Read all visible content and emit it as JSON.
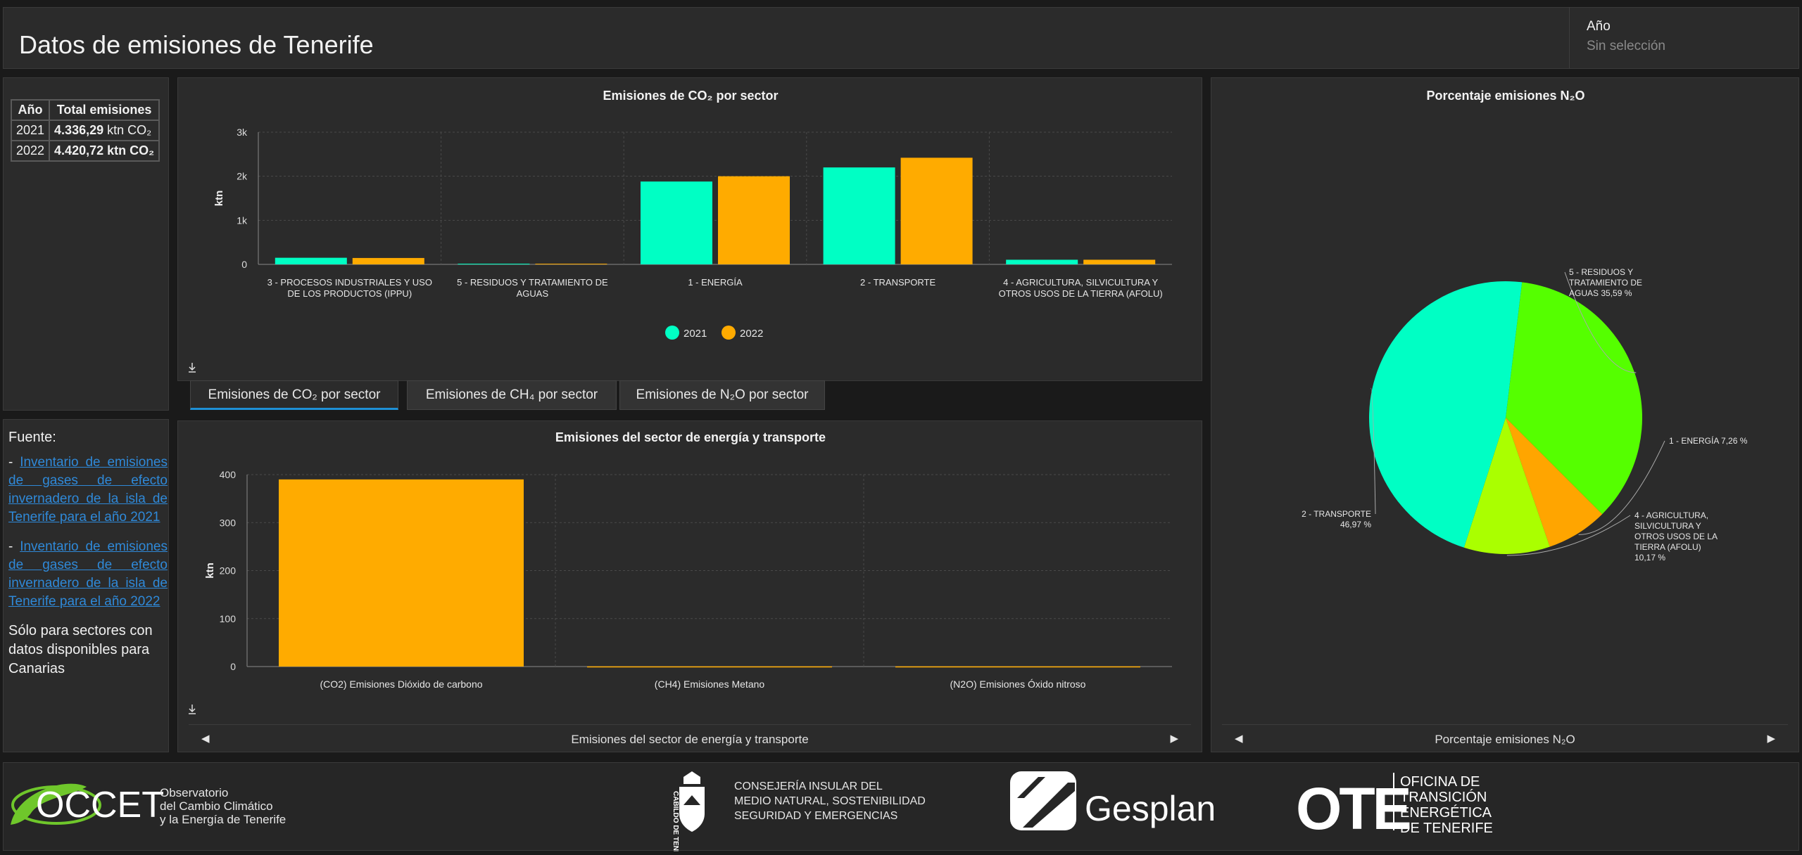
{
  "header": {
    "title": "Datos de emisiones de Tenerife",
    "filter_label": "Año",
    "filter_value": "Sin selección"
  },
  "totals": {
    "col_year": "Año",
    "col_total": "Total emisiones",
    "rows": [
      {
        "year": "2021",
        "value": "4.336,29",
        "unit": "ktn CO₂"
      },
      {
        "year": "2022",
        "value": "4.420,72",
        "unit": "ktn CO₂"
      }
    ]
  },
  "source": {
    "title": "Fuente:",
    "prefix": "- ",
    "link1": "Inventario de emisiones de gases de efecto invernadero de la isla de Tenerife para el año 2021",
    "link2": "Inventario de emisiones de gases de efecto invernadero de la isla de Tenerife para el año 2022",
    "note": "Sólo para sectores con datos disponibles para Canarias"
  },
  "tabs": [
    {
      "label": "Emisiones de CO₂ por sector"
    },
    {
      "label": "Emisiones de CH₄ por sector"
    },
    {
      "label": "Emisiones de N₂O por sector"
    }
  ],
  "carousels": {
    "energy": "Emisiones del sector de energía y transporte",
    "n2o": "Porcentaje emisiones N₂O"
  },
  "footer": {
    "occet_logo": "OCCET",
    "occet_sub": [
      "Observatorio",
      "del Cambio Climático",
      "y la Energía de Tenerife"
    ],
    "cabildo_lines": [
      "CONSEJERÍA INSULAR DEL",
      "MEDIO NATURAL, SOSTENIBILIDAD",
      "SEGURIDAD Y EMERGENCIAS"
    ],
    "cabildo_vertical": "CABILDO DE TENERIFE",
    "gesplan": "Gesplan",
    "ote_logo": "OTE",
    "ote_lines": [
      "OFICINA DE",
      "TRANSICIÓN",
      "ENERGÉTICA",
      "DE TENERIFE"
    ]
  },
  "icons": {
    "download": "download-icon",
    "prev": "chevron-left-icon",
    "next": "chevron-right-icon"
  },
  "colors": {
    "series2021": "#00ffc4",
    "series2022": "#ffab00",
    "accent": "#1e90d6"
  },
  "chart_data": [
    {
      "id": "co2",
      "type": "bar",
      "title": "Emisiones de CO₂ por sector",
      "ylabel": "ktn",
      "ylim": [
        0,
        3000
      ],
      "yticks": [
        0,
        1000,
        2000,
        3000
      ],
      "ytick_labels": [
        "0",
        "1k",
        "2k",
        "3k"
      ],
      "categories": [
        [
          "3 - PROCESOS INDUSTRIALES Y USO",
          "DE LOS PRODUCTOS (IPPU)"
        ],
        [
          "5 - RESIDUOS Y TRATAMIENTO DE",
          "AGUAS"
        ],
        [
          "1 - ENERGÍA"
        ],
        [
          "2 - TRANSPORTE"
        ],
        [
          "4 - AGRICULTURA, SILVICULTURA Y",
          "OTROS USOS DE LA TIERRA (AFOLU)"
        ]
      ],
      "series": [
        {
          "name": "2021",
          "color": "#00ffc4",
          "values": [
            150,
            15,
            1880,
            2200,
            105
          ]
        },
        {
          "name": "2022",
          "color": "#ffab00",
          "values": [
            145,
            15,
            2000,
            2420,
            105
          ]
        }
      ],
      "legend_position": "bottom"
    },
    {
      "id": "energy",
      "type": "bar",
      "title": "Emisiones del sector de energía y transporte",
      "ylabel": "ktn",
      "ylim": [
        0,
        400
      ],
      "yticks": [
        0,
        100,
        200,
        300,
        400
      ],
      "categories": [
        "(CO2) Emisiones Dióxido de carbono",
        "(CH4) Emisiones Metano",
        "(N2O) Emisiones Óxido nitroso"
      ],
      "values": [
        390,
        0.4,
        0.4
      ],
      "color": "#ffab00"
    },
    {
      "id": "n2o",
      "type": "pie",
      "title": "Porcentaje emisiones N₂O",
      "slices": [
        {
          "label": [
            "5 - RESIDUOS Y",
            "TRATAMIENTO DE",
            "AGUAS 35,59 %"
          ],
          "value": 35.59,
          "color": "#55ff00"
        },
        {
          "label": [
            "1 - ENERGÍA 7,26 %"
          ],
          "value": 7.26,
          "color": "#ffa500"
        },
        {
          "label": [
            "4 - AGRICULTURA,",
            "SILVICULTURA Y",
            "OTROS USOS DE LA",
            "TIERRA (AFOLU)",
            "10,17 %"
          ],
          "value": 10.17,
          "color": "#aaff00"
        },
        {
          "label": [
            "2 - TRANSPORTE",
            "46,97 %"
          ],
          "value": 46.97,
          "color": "#00ffc4"
        }
      ]
    }
  ]
}
